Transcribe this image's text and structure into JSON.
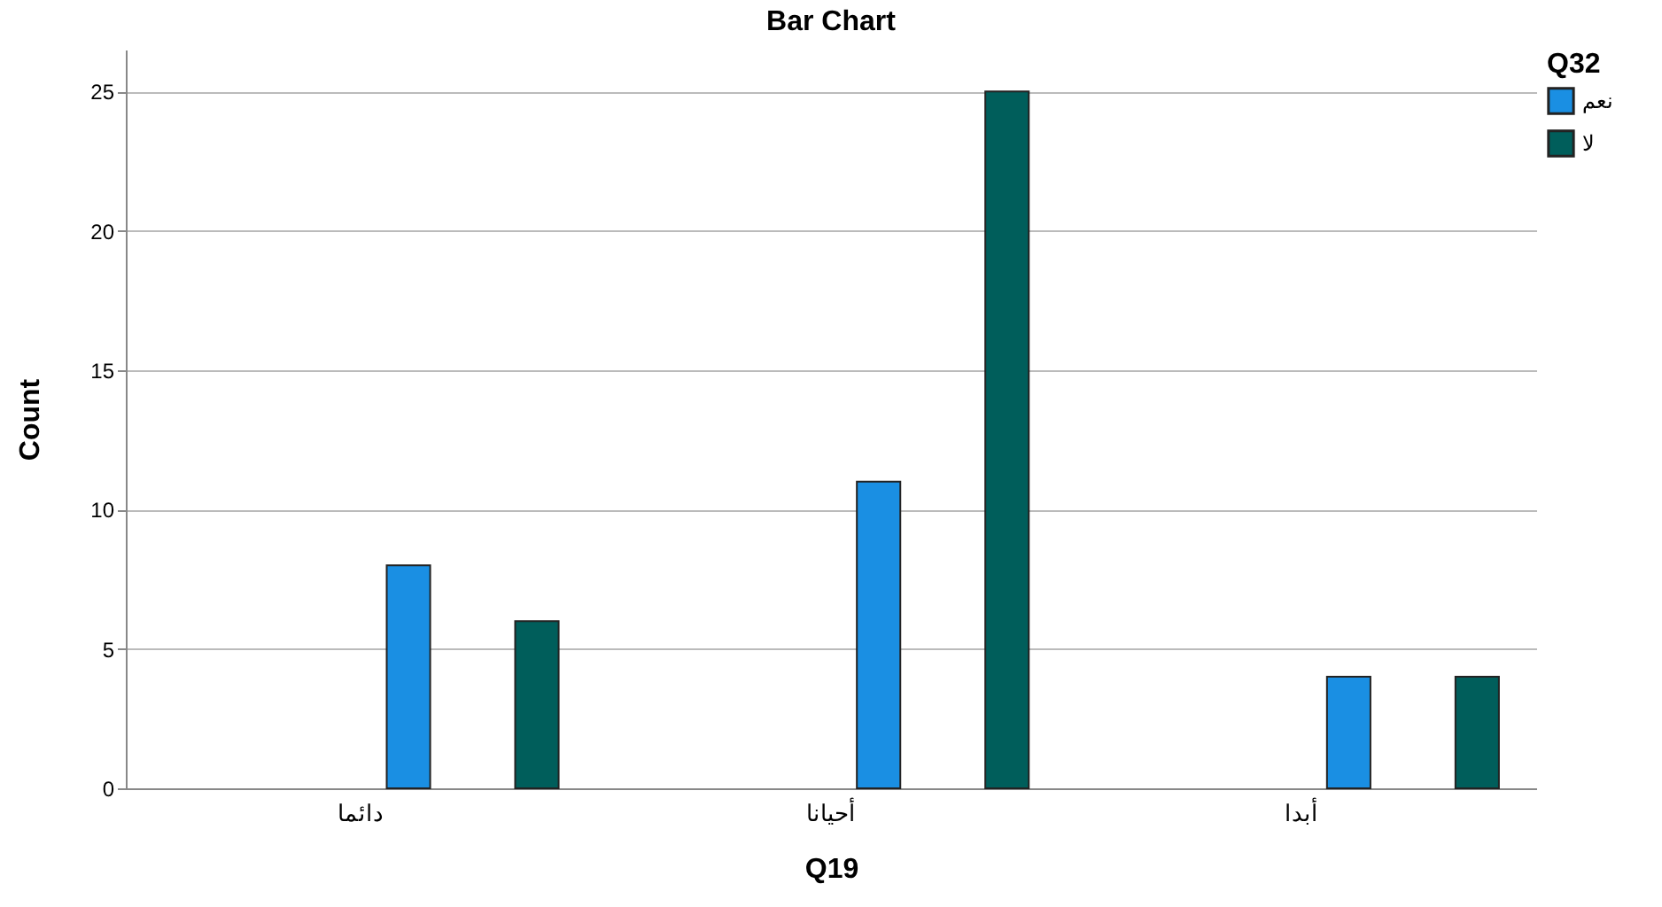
{
  "chart_data": {
    "type": "bar",
    "title": "Bar Chart",
    "xlabel": "Q19",
    "ylabel": "Count",
    "legend_title": "Q32",
    "categories": [
      "دائما",
      "أحيانا",
      "أبدا"
    ],
    "series": [
      {
        "name": "نعم",
        "color": "#1a8fe3",
        "values": [
          8,
          11,
          4
        ]
      },
      {
        "name": "لا",
        "color": "#005e5b",
        "values": [
          6,
          25,
          4
        ]
      }
    ],
    "ylim": [
      0,
      26.5
    ],
    "yticks": [
      0,
      5,
      10,
      15,
      20,
      25
    ],
    "grid": "y",
    "legend": "top right"
  }
}
